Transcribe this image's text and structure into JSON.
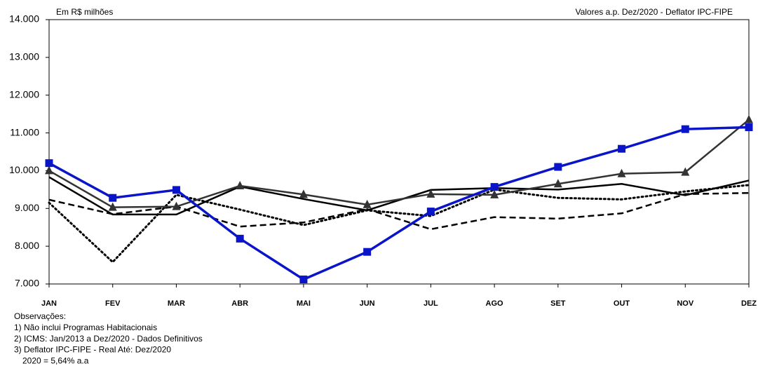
{
  "chart_data": {
    "type": "line",
    "subtitle_left": "Em R$ milhões",
    "subtitle_right": "Valores a.p. Dez/2020 - Deflator IPC-FIPE",
    "categories": [
      "JAN",
      "FEV",
      "MAR",
      "ABR",
      "MAI",
      "JUN",
      "JUL",
      "AGO",
      "SET",
      "OUT",
      "NOV",
      "DEZ"
    ],
    "series": [
      {
        "color": "#000000",
        "dash": "dotted",
        "values": [
          9150,
          7580,
          9360,
          8970,
          8560,
          8950,
          8800,
          9500,
          9280,
          9240,
          9450,
          9620
        ]
      },
      {
        "color": "#000000",
        "dash": "dashed",
        "values": [
          9230,
          8850,
          9050,
          8520,
          8630,
          8980,
          8450,
          8770,
          8730,
          8870,
          9380,
          9410
        ]
      },
      {
        "color": "#000000",
        "dash": "solid",
        "values": [
          9830,
          8840,
          8840,
          9580,
          9250,
          8950,
          9490,
          9540,
          9500,
          9650,
          9350,
          9740
        ]
      },
      {
        "color": "#333333",
        "dash": "solid",
        "marker": "triangle",
        "values": [
          10000,
          9030,
          9050,
          9600,
          9370,
          9100,
          9380,
          9360,
          9650,
          9920,
          9960,
          11350
        ]
      },
      {
        "color": "#0a14c8",
        "dash": "solid",
        "marker": "square",
        "values": [
          10200,
          9280,
          9490,
          8200,
          7120,
          7850,
          8920,
          9570,
          10100,
          10580,
          11100,
          11150
        ]
      }
    ],
    "ylim": [
      7000,
      14000
    ],
    "yticks": [
      {
        "value": 7000,
        "label": "7.000"
      },
      {
        "value": 8000,
        "label": "8.000"
      },
      {
        "value": 9000,
        "label": "9.000"
      },
      {
        "value": 10000,
        "label": "10.000"
      },
      {
        "value": 11000,
        "label": "11.000"
      },
      {
        "value": 12000,
        "label": "12.000"
      },
      {
        "value": 13000,
        "label": "13.000"
      },
      {
        "value": 14000,
        "label": "14.000"
      }
    ],
    "grid": false,
    "notes": [
      "Observações:",
      "1) Não inclui Programas Habitacionais",
      "2) ICMS: Jan/2013 a Dez/2020 - Dados Definitivos",
      "3) Deflator IPC-FIPE - Real Até: Dez/2020",
      "2020 = 5,64% a.a"
    ]
  }
}
